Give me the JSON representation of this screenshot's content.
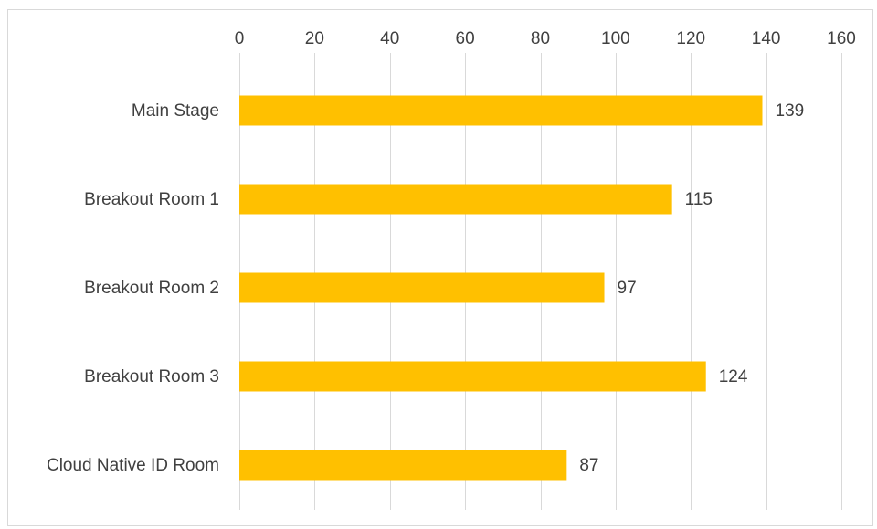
{
  "chart_data": {
    "type": "bar",
    "orientation": "horizontal",
    "categories": [
      "Main Stage",
      "Breakout Room 1",
      "Breakout Room 2",
      "Breakout Room 3",
      "Cloud Native ID Room"
    ],
    "values": [
      139,
      115,
      97,
      124,
      87
    ],
    "data_labels": [
      "139",
      "115",
      "97",
      "124",
      "87"
    ],
    "xlim": [
      0,
      160
    ],
    "x_ticks": [
      0,
      20,
      40,
      60,
      80,
      100,
      120,
      140,
      160
    ],
    "x_tick_labels": [
      "0",
      "20",
      "40",
      "60",
      "80",
      "100",
      "120",
      "140",
      "160"
    ],
    "x_axis_position": "top",
    "grid": "vertical",
    "legend": "none",
    "title": "",
    "xlabel": "",
    "ylabel": "",
    "colors": {
      "bar": "#FFC000",
      "grid": "#d9d9d9",
      "text": "#404040"
    }
  }
}
